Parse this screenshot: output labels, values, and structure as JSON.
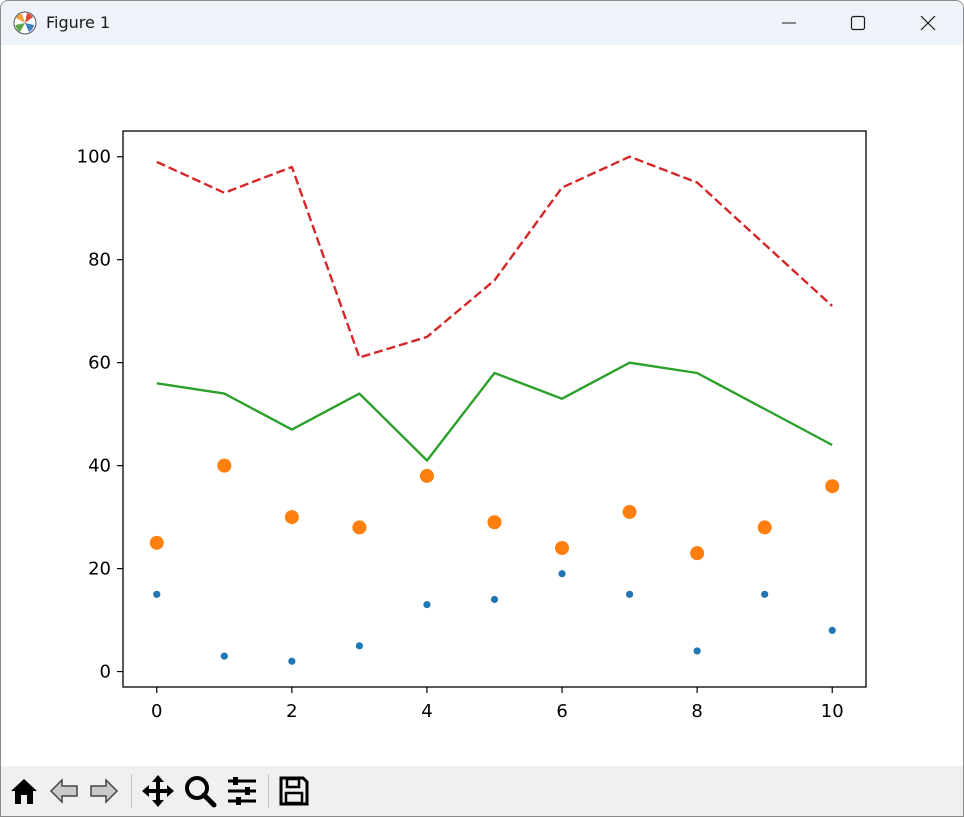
{
  "window": {
    "title": "Figure 1",
    "icon": "matplotlib-icon",
    "controls": [
      "minimize-icon",
      "maximize-icon",
      "close-icon"
    ]
  },
  "toolbar": {
    "buttons": [
      "home-icon",
      "back-icon",
      "forward-icon",
      "pan-icon",
      "zoom-icon",
      "configure-subplots-icon",
      "save-icon"
    ]
  },
  "chart_data": {
    "type": "line",
    "title": "",
    "xlabel": "",
    "ylabel": "",
    "xlim": [
      -0.5,
      10.5
    ],
    "ylim": [
      -3,
      105
    ],
    "xticks": [
      0,
      2,
      4,
      6,
      8,
      10
    ],
    "yticks": [
      0,
      20,
      40,
      60,
      80,
      100
    ],
    "x": [
      0,
      1,
      2,
      3,
      4,
      5,
      6,
      7,
      8,
      9,
      10
    ],
    "grid": false,
    "series": [
      {
        "type": "scatter",
        "color": "#1f77b4",
        "marker": "small-dot",
        "values": [
          15,
          3,
          2,
          5,
          13,
          14,
          19,
          15,
          4,
          15,
          8
        ]
      },
      {
        "type": "scatter",
        "color": "#ff7f0e",
        "marker": "large-dot",
        "values": [
          25,
          40,
          30,
          28,
          38,
          29,
          24,
          31,
          23,
          28,
          36
        ]
      },
      {
        "type": "line",
        "color": "#2ca02c",
        "style": "solid",
        "values": [
          56,
          54,
          47,
          54,
          41,
          58,
          53,
          60,
          58,
          51,
          44
        ]
      },
      {
        "type": "line",
        "color": "#d62728",
        "style": "dashed",
        "values": [
          99,
          93,
          98,
          61,
          65,
          76,
          94,
          100,
          95,
          83,
          71
        ]
      }
    ]
  }
}
